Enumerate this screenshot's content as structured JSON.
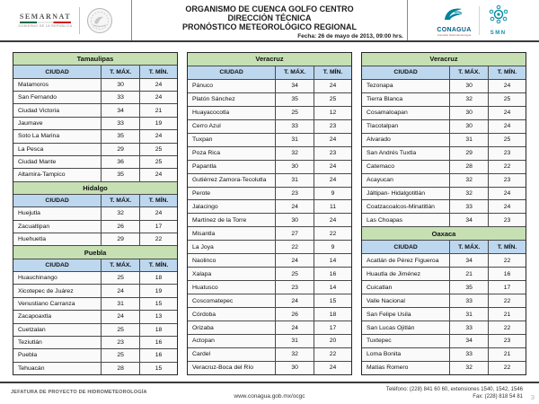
{
  "header": {
    "semarnat_label": "SEMARNAT",
    "semarnat_sublabel": "GOBIERNO DE LA REPÚBLICA",
    "title_line1": "ORGANISMO DE CUENCA GOLFO CENTRO",
    "title_line2": "DIRECCIÓN TÉCNICA",
    "title_line3": "PRONÓSTICO METEOROLÓGICO REGIONAL",
    "date_line": "Fecha: 26 de mayo de 2013, 09:00 hrs.",
    "conagua_label": "CONAGUA",
    "conagua_sublabel": "Comisión Nacional del Agua",
    "smn_label": "SMN"
  },
  "column_headers": [
    "CIUDAD",
    "T. MÁX.",
    "T. MÍN."
  ],
  "table_columns": [
    {
      "tables": [
        {
          "state": "Tamaulipas",
          "rows": [
            [
              "Matamoros",
              "30",
              "24"
            ],
            [
              "San Fernando",
              "33",
              "24"
            ],
            [
              "Ciudad Victoria",
              "34",
              "21"
            ],
            [
              "Jaumave",
              "33",
              "19"
            ],
            [
              "Soto La Marina",
              "35",
              "24"
            ],
            [
              "La Pesca",
              "29",
              "25"
            ],
            [
              "Ciudad Mante",
              "36",
              "25"
            ],
            [
              "Altamira-Tampico",
              "35",
              "24"
            ]
          ]
        },
        {
          "state": "Hidalgo",
          "rows": [
            [
              "Huejutla",
              "32",
              "24"
            ],
            [
              "Zacualtipan",
              "26",
              "17"
            ],
            [
              "Huehuetla",
              "29",
              "22"
            ]
          ]
        },
        {
          "state": "Puebla",
          "rows": [
            [
              "Huauchinango",
              "25",
              "18"
            ],
            [
              "Xicotepec de Juárez",
              "24",
              "19"
            ],
            [
              "Venustiano Carranza",
              "31",
              "15"
            ],
            [
              "Zacapoaxtla",
              "24",
              "13"
            ],
            [
              "Cuetzalan",
              "25",
              "18"
            ],
            [
              "Teziutlán",
              "23",
              "16"
            ],
            [
              "Puebla",
              "25",
              "16"
            ],
            [
              "Tehuacán",
              "28",
              "15"
            ]
          ]
        }
      ]
    },
    {
      "tables": [
        {
          "state": "Veracruz",
          "rows": [
            [
              "Pánuco",
              "34",
              "24"
            ],
            [
              "Platón Sánchez",
              "35",
              "25"
            ],
            [
              "Huayacocotla",
              "25",
              "12"
            ],
            [
              "Cerro Azul",
              "33",
              "23"
            ],
            [
              "Tuxpan",
              "31",
              "24"
            ],
            [
              "Poza Rica",
              "32",
              "23"
            ],
            [
              "Papantla",
              "30",
              "24"
            ],
            [
              "Gutiérrez Zamora-Tecolutla",
              "31",
              "24"
            ],
            [
              "Perote",
              "23",
              "9"
            ],
            [
              "Jalacingo",
              "24",
              "11"
            ],
            [
              "Martínez de la Torre",
              "30",
              "24"
            ],
            [
              "Misantla",
              "27",
              "22"
            ],
            [
              "La Joya",
              "22",
              "9"
            ],
            [
              "Naolinco",
              "24",
              "14"
            ],
            [
              "Xalapa",
              "25",
              "16"
            ],
            [
              "Huatusco",
              "23",
              "14"
            ],
            [
              "Coscomatepec",
              "24",
              "15"
            ],
            [
              "Córdoba",
              "26",
              "18"
            ],
            [
              "Orizaba",
              "24",
              "17"
            ],
            [
              "Actopan",
              "31",
              "20"
            ],
            [
              "Cardel",
              "32",
              "22"
            ],
            [
              "Veracruz-Boca del Río",
              "30",
              "24"
            ]
          ]
        }
      ]
    },
    {
      "tables": [
        {
          "state": "Veracruz",
          "rows": [
            [
              "Tezonapa",
              "30",
              "24"
            ],
            [
              "Tierra Blanca",
              "32",
              "25"
            ],
            [
              "Cosamaloapan",
              "30",
              "24"
            ],
            [
              "Tlacotalpan",
              "30",
              "24"
            ],
            [
              "Alvarado",
              "31",
              "25"
            ],
            [
              "San Andrés Tuxtla",
              "29",
              "23"
            ],
            [
              "Catemaco",
              "28",
              "22"
            ],
            [
              "Acayucan",
              "32",
              "23"
            ],
            [
              "Jáltipan- Hidalgotitlán",
              "32",
              "24"
            ],
            [
              "Coatzacoalcos-Minatitlán",
              "33",
              "24"
            ],
            [
              "Las Choapas",
              "34",
              "23"
            ]
          ]
        },
        {
          "state": "Oaxaca",
          "rows": [
            [
              "Acatlán de Pérez Figueroa",
              "34",
              "22"
            ],
            [
              "Huautla de Jiménez",
              "21",
              "16"
            ],
            [
              "Cuicatlan",
              "35",
              "17"
            ],
            [
              "Valle Nacional",
              "33",
              "22"
            ],
            [
              "San Felipe Usila",
              "31",
              "21"
            ],
            [
              "San Lucas Ojitlán",
              "33",
              "22"
            ],
            [
              "Tuxtepec",
              "34",
              "23"
            ],
            [
              "Loma Bonita",
              "33",
              "21"
            ],
            [
              "Matías Romero",
              "32",
              "22"
            ]
          ]
        }
      ]
    }
  ],
  "footer": {
    "left": "JEFATURA DE PROYECTO DE HIDROMETEOROLOGÍA",
    "center": "www.conagua.gob.mx/ocgc",
    "phone": "Teléfono: (228) 841 60 60, extensiones 1540, 1542, 1546",
    "fax": "Fax: (228) 818 54 81",
    "page_number": "3"
  },
  "colors": {
    "state_header_bg": "#c6e0b4",
    "column_header_bg": "#bdd7ee",
    "border": "#4a4a4a",
    "teal": "#00829b",
    "conagua_text": "#005f86"
  }
}
